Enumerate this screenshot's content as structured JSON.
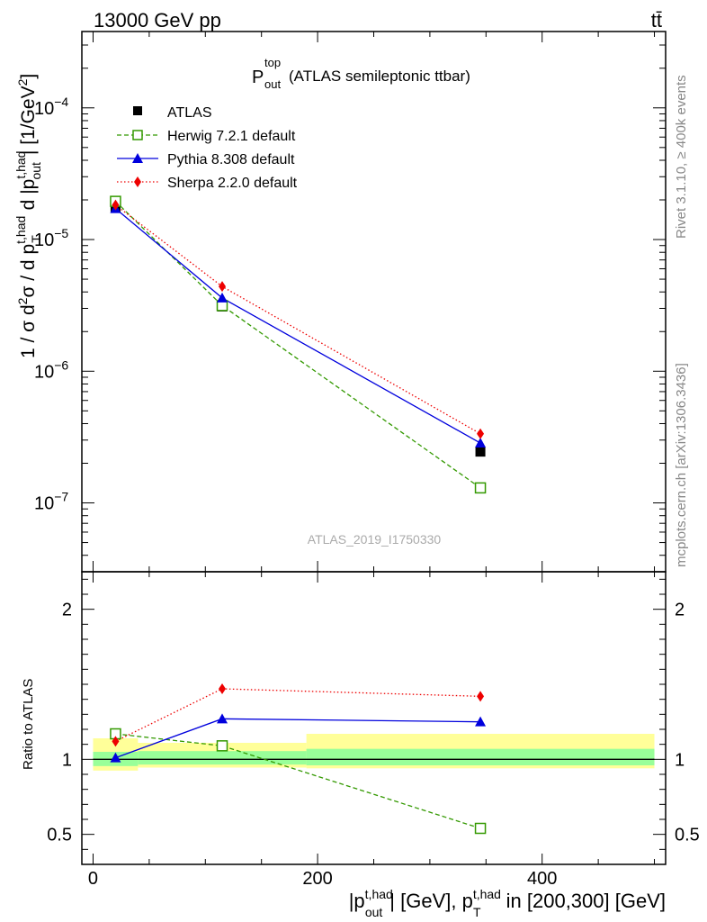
{
  "header": {
    "energy_label": "13000 GeV pp",
    "process_label": "tt̄"
  },
  "side_labels": {
    "rivet": "Rivet 3.1.10, ≥ 400k events",
    "mcplots": "mcplots.cern.ch [arXiv:1306.3436]"
  },
  "main_plot": {
    "title_main": "P",
    "title_sup": "top",
    "title_sub": "out",
    "title_rest": "(ATLAS semileptonic ttbar)",
    "analysis_id": "ATLAS_2019_I1750330",
    "ylabel": "1 / σ d²σ / d p_T^{t,had} d |p_out^{t,had}| [1/GeV²]",
    "yscale": "log",
    "ylim": [
      3e-08,
      0.00038
    ],
    "ytick_labels": [
      {
        "mantissa": "10",
        "exponent": "−7",
        "value": 1e-07
      },
      {
        "mantissa": "10",
        "exponent": "−6",
        "value": 1e-06
      },
      {
        "mantissa": "10",
        "exponent": "−5",
        "value": 1e-05
      },
      {
        "mantissa": "10",
        "exponent": "−4",
        "value": 0.0001
      }
    ]
  },
  "ratio_plot": {
    "ylabel": "Ratio to ATLAS",
    "ylim": [
      0.3,
      2.25
    ],
    "ytick_labels": [
      "0.5",
      "1",
      "2"
    ],
    "ytick_values": [
      0.5,
      1,
      2
    ]
  },
  "x_axis": {
    "xlim": [
      -10,
      510
    ],
    "tick_labels": [
      "0",
      "200",
      "400"
    ],
    "tick_values": [
      0,
      200,
      400
    ],
    "label": "|p_out^{t,had}| [GeV], p_T^{t,had} in [200,300] [GeV]"
  },
  "legend": {
    "position": "top-left",
    "entries": [
      {
        "label": "ATLAS",
        "key": "atlas"
      },
      {
        "label": "Herwig 7.2.1 default",
        "key": "herwig"
      },
      {
        "label": "Pythia 8.308 default",
        "key": "pythia"
      },
      {
        "label": "Sherpa 2.2.0 default",
        "key": "sherpa"
      }
    ]
  },
  "chart_data": {
    "type": "scatter",
    "title": "P_out^top (ATLAS semileptonic ttbar)",
    "xlabel": "|p_out^{t,had}| [GeV], p_T^{t,had} in [200,300] [GeV]",
    "ylabel": "1 / σ d²σ / d p_T^{t,had} d |p_out^{t,had}| [1/GeV²]",
    "xlim": [
      -10,
      510
    ],
    "ylim": [
      3e-08,
      0.00038
    ],
    "bins": [
      [
        0,
        40
      ],
      [
        40,
        190
      ],
      [
        190,
        500
      ]
    ],
    "x": [
      20,
      115,
      345
    ],
    "series": [
      {
        "name": "ATLAS",
        "key": "atlas",
        "color": "#000000",
        "marker": "filled-square",
        "values": [
          1.75e-05,
          3.1e-06,
          2.45e-07
        ]
      },
      {
        "name": "Herwig 7.2.1 default",
        "key": "herwig",
        "color": "#339900",
        "marker": "open-square",
        "linestyle": "dashed",
        "values": [
          1.95e-05,
          3.15e-06,
          1.3e-07
        ]
      },
      {
        "name": "Pythia 8.308 default",
        "key": "pythia",
        "color": "#0000dd",
        "marker": "triangle",
        "linestyle": "solid",
        "values": [
          1.72e-05,
          3.6e-06,
          2.85e-07
        ]
      },
      {
        "name": "Sherpa 2.2.0 default",
        "key": "sherpa",
        "color": "#ee0000",
        "marker": "diamond",
        "linestyle": "dotted",
        "values": [
          1.83e-05,
          4.4e-06,
          3.35e-07
        ]
      }
    ],
    "ratio": {
      "herwig": [
        1.17,
        1.09,
        0.54
      ],
      "pythia": [
        1.01,
        1.27,
        1.25
      ],
      "sherpa": [
        1.12,
        1.47,
        1.42
      ],
      "sherpa_err": [
        0,
        0.02,
        0.03
      ]
    },
    "uncertainty_bands": {
      "stat_color": "#99ff99",
      "total_color": "#ffff99",
      "stat": [
        [
          0.955,
          1.05
        ],
        [
          0.965,
          1.055
        ],
        [
          0.96,
          1.07
        ]
      ],
      "total": [
        [
          0.925,
          1.14
        ],
        [
          0.945,
          1.11
        ],
        [
          0.94,
          1.17
        ]
      ]
    }
  }
}
